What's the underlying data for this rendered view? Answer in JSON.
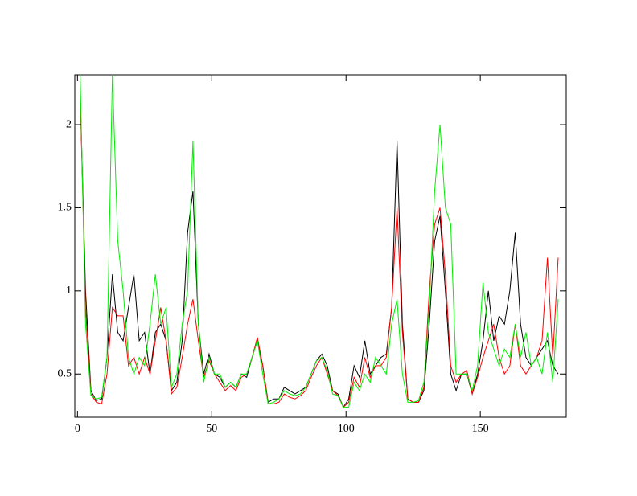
{
  "chart_data": {
    "type": "line",
    "x": [
      1,
      3,
      5,
      7,
      9,
      11,
      13,
      15,
      17,
      19,
      21,
      23,
      25,
      27,
      29,
      31,
      33,
      35,
      37,
      39,
      41,
      43,
      45,
      47,
      49,
      51,
      53,
      55,
      57,
      59,
      61,
      63,
      65,
      67,
      69,
      71,
      73,
      75,
      77,
      79,
      81,
      83,
      85,
      87,
      89,
      91,
      93,
      95,
      97,
      99,
      101,
      103,
      105,
      107,
      109,
      111,
      113,
      115,
      117,
      119,
      121,
      123,
      125,
      127,
      129,
      131,
      133,
      135,
      137,
      139,
      141,
      143,
      145,
      147,
      149,
      151,
      153,
      155,
      157,
      159,
      161,
      163,
      165,
      167,
      169,
      171,
      173,
      175,
      177,
      179
    ],
    "series": [
      {
        "color": "#000000",
        "values": [
          2.2,
          1.0,
          0.4,
          0.34,
          0.35,
          0.6,
          1.1,
          0.75,
          0.7,
          0.9,
          1.1,
          0.7,
          0.75,
          0.5,
          0.75,
          0.8,
          0.7,
          0.4,
          0.45,
          0.7,
          1.35,
          1.6,
          0.8,
          0.5,
          0.62,
          0.5,
          0.48,
          0.42,
          0.45,
          0.42,
          0.5,
          0.48,
          0.6,
          0.7,
          0.55,
          0.33,
          0.35,
          0.35,
          0.42,
          0.4,
          0.38,
          0.4,
          0.42,
          0.5,
          0.58,
          0.62,
          0.55,
          0.4,
          0.38,
          0.3,
          0.35,
          0.55,
          0.48,
          0.7,
          0.5,
          0.55,
          0.6,
          0.62,
          0.9,
          1.9,
          0.8,
          0.35,
          0.33,
          0.33,
          0.4,
          0.8,
          1.3,
          1.45,
          1.0,
          0.5,
          0.4,
          0.5,
          0.5,
          0.38,
          0.5,
          0.7,
          1.0,
          0.7,
          0.85,
          0.8,
          1.0,
          1.35,
          0.8,
          0.6,
          0.55,
          0.6,
          0.65,
          0.7,
          0.55,
          0.5
        ]
      },
      {
        "color": "#ff0000",
        "values": [
          2.2,
          0.9,
          0.38,
          0.33,
          0.32,
          0.5,
          0.9,
          0.85,
          0.85,
          0.55,
          0.6,
          0.5,
          0.6,
          0.5,
          0.7,
          0.9,
          0.7,
          0.38,
          0.42,
          0.6,
          0.8,
          0.95,
          0.7,
          0.48,
          0.58,
          0.5,
          0.45,
          0.4,
          0.43,
          0.4,
          0.48,
          0.5,
          0.6,
          0.72,
          0.55,
          0.32,
          0.32,
          0.33,
          0.38,
          0.36,
          0.35,
          0.37,
          0.4,
          0.48,
          0.55,
          0.6,
          0.5,
          0.4,
          0.37,
          0.3,
          0.33,
          0.48,
          0.42,
          0.6,
          0.48,
          0.55,
          0.55,
          0.6,
          0.9,
          1.5,
          0.75,
          0.35,
          0.33,
          0.33,
          0.42,
          1.0,
          1.4,
          1.5,
          1.1,
          0.55,
          0.45,
          0.5,
          0.52,
          0.38,
          0.48,
          0.6,
          0.7,
          0.8,
          0.6,
          0.5,
          0.55,
          0.8,
          0.55,
          0.5,
          0.55,
          0.6,
          0.7,
          1.2,
          0.6,
          1.2
        ]
      },
      {
        "color": "#00ee00",
        "values": [
          2.3,
          0.8,
          0.37,
          0.35,
          0.36,
          0.6,
          2.3,
          1.3,
          1.0,
          0.6,
          0.5,
          0.6,
          0.55,
          0.8,
          1.1,
          0.8,
          0.9,
          0.42,
          0.5,
          0.8,
          1.0,
          1.9,
          0.8,
          0.45,
          0.6,
          0.5,
          0.5,
          0.42,
          0.45,
          0.42,
          0.5,
          0.5,
          0.6,
          0.7,
          0.5,
          0.32,
          0.33,
          0.35,
          0.4,
          0.38,
          0.37,
          0.38,
          0.42,
          0.5,
          0.58,
          0.6,
          0.52,
          0.38,
          0.37,
          0.3,
          0.3,
          0.45,
          0.4,
          0.5,
          0.45,
          0.6,
          0.55,
          0.5,
          0.8,
          0.95,
          0.5,
          0.33,
          0.33,
          0.34,
          0.45,
          0.9,
          1.6,
          2.0,
          1.5,
          1.4,
          0.5,
          0.5,
          0.5,
          0.4,
          0.55,
          1.05,
          0.75,
          0.65,
          0.55,
          0.65,
          0.6,
          0.8,
          0.6,
          0.75,
          0.55,
          0.6,
          0.5,
          0.75,
          0.45,
          0.95
        ]
      }
    ],
    "xlim": [
      -1,
      182
    ],
    "ylim": [
      0.24,
      2.3
    ],
    "xticks": [
      0,
      50,
      100,
      150
    ],
    "yticks": [
      0.5,
      1,
      1.5,
      2
    ]
  }
}
